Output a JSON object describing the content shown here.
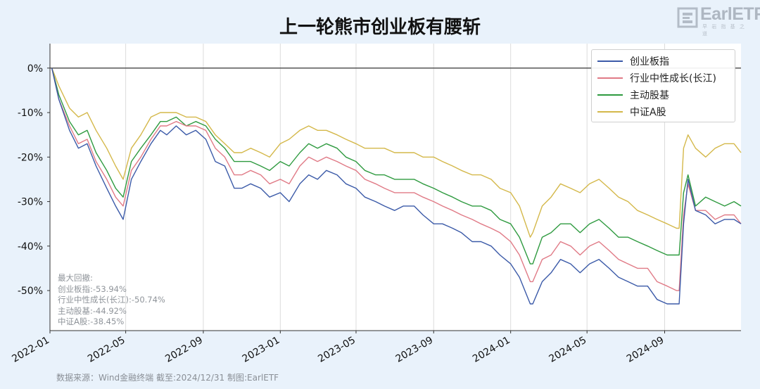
{
  "title": "上一轮熊市创业板有腰斩",
  "logo": {
    "text": "EarlETF",
    "sub": "早 岩 指 基 之 道"
  },
  "source": "数据来源：Wind金融终端 截至:2024/12/31 制图:EarlETF",
  "drawdown": {
    "heading": "最大回撤:",
    "lines": [
      "创业板指:-53.94%",
      "行业中性成长(长江):-50.74%",
      "主动股基:-44.92%",
      "中证A股:-38.45%"
    ]
  },
  "chart_data": {
    "type": "line",
    "title": "上一轮熊市创业板有腰斩",
    "xlabel": "",
    "ylabel": "",
    "x_ticks": [
      "2022-01",
      "2022-05",
      "2022-09",
      "2023-01",
      "2023-05",
      "2023-09",
      "2024-01",
      "2024-05",
      "2024-09"
    ],
    "x_range": [
      "2022-01",
      "2024-12-31"
    ],
    "y_ticks": [
      "0%",
      "-10%",
      "-20%",
      "-30%",
      "-40%",
      "-50%"
    ],
    "ylim": [
      -59,
      5.5
    ],
    "grid": "vertical",
    "legend_position": "top-right",
    "x": [
      "2022-01-04",
      "2022-01-15",
      "2022-02-01",
      "2022-02-15",
      "2022-03-01",
      "2022-03-15",
      "2022-04-01",
      "2022-04-15",
      "2022-04-27",
      "2022-05-10",
      "2022-05-25",
      "2022-06-10",
      "2022-06-25",
      "2022-07-05",
      "2022-07-20",
      "2022-08-05",
      "2022-08-20",
      "2022-09-05",
      "2022-09-20",
      "2022-10-05",
      "2022-10-20",
      "2022-11-01",
      "2022-11-15",
      "2022-12-01",
      "2022-12-15",
      "2023-01-01",
      "2023-01-15",
      "2023-02-01",
      "2023-02-15",
      "2023-03-01",
      "2023-03-15",
      "2023-04-01",
      "2023-04-15",
      "2023-05-01",
      "2023-05-15",
      "2023-06-01",
      "2023-06-15",
      "2023-07-01",
      "2023-07-15",
      "2023-08-01",
      "2023-08-15",
      "2023-09-01",
      "2023-09-15",
      "2023-10-01",
      "2023-10-15",
      "2023-11-01",
      "2023-11-15",
      "2023-12-01",
      "2023-12-15",
      "2024-01-01",
      "2024-01-15",
      "2024-02-01",
      "2024-02-05",
      "2024-02-20",
      "2024-03-05",
      "2024-03-20",
      "2024-04-05",
      "2024-04-20",
      "2024-05-05",
      "2024-05-20",
      "2024-06-05",
      "2024-06-20",
      "2024-07-05",
      "2024-07-20",
      "2024-08-05",
      "2024-08-20",
      "2024-09-05",
      "2024-09-20",
      "2024-09-24",
      "2024-10-01",
      "2024-10-08",
      "2024-10-20",
      "2024-11-05",
      "2024-11-20",
      "2024-12-05",
      "2024-12-20",
      "2024-12-31"
    ],
    "series": [
      {
        "name": "创业板指",
        "color": "#3b5aa8",
        "values": [
          0,
          -7,
          -14,
          -18,
          -17,
          -22,
          -27,
          -31,
          -34,
          -25,
          -21,
          -17,
          -14,
          -15,
          -13,
          -15,
          -14,
          -16,
          -21,
          -22,
          -27,
          -27,
          -26,
          -27,
          -29,
          -28,
          -30,
          -26,
          -24,
          -25,
          -23,
          -24,
          -26,
          -27,
          -29,
          -30,
          -31,
          -32,
          -31,
          -31,
          -33,
          -35,
          -35,
          -36,
          -37,
          -39,
          -39,
          -40,
          -42,
          -44,
          -47,
          -53,
          -53,
          -48,
          -46,
          -43,
          -44,
          -46,
          -44,
          -43,
          -45,
          -47,
          -48,
          -49,
          -49,
          -52,
          -53,
          -53,
          -53,
          -35,
          -25,
          -32,
          -33,
          -35,
          -34,
          -34,
          -35
        ]
      },
      {
        "name": "行业中性成长(长江)",
        "color": "#e07a86",
        "values": [
          0,
          -7,
          -13,
          -17,
          -16,
          -21,
          -25,
          -29,
          -31,
          -23,
          -20,
          -16,
          -13,
          -13,
          -12,
          -13,
          -13,
          -14,
          -18,
          -20,
          -24,
          -24,
          -23,
          -24,
          -26,
          -25,
          -26,
          -22,
          -20,
          -21,
          -20,
          -21,
          -22,
          -23,
          -25,
          -26,
          -27,
          -28,
          -28,
          -28,
          -29,
          -30,
          -31,
          -32,
          -33,
          -34,
          -35,
          -36,
          -37,
          -39,
          -42,
          -48,
          -48,
          -43,
          -42,
          -39,
          -40,
          -42,
          -40,
          -39,
          -41,
          -43,
          -44,
          -45,
          -45,
          -48,
          -49,
          -50,
          -50,
          -33,
          -26,
          -32,
          -32,
          -34,
          -33,
          -33,
          -35
        ]
      },
      {
        "name": "主动股基",
        "color": "#2e9a3f",
        "values": [
          0,
          -6,
          -12,
          -15,
          -14,
          -19,
          -23,
          -27,
          -29,
          -21,
          -18,
          -15,
          -12,
          -12,
          -11,
          -13,
          -12,
          -13,
          -16,
          -18,
          -21,
          -21,
          -21,
          -22,
          -23,
          -21,
          -22,
          -19,
          -17,
          -18,
          -17,
          -18,
          -20,
          -21,
          -23,
          -24,
          -24,
          -25,
          -25,
          -25,
          -26,
          -27,
          -28,
          -29,
          -30,
          -31,
          -31,
          -32,
          -34,
          -35,
          -38,
          -44,
          -44,
          -38,
          -37,
          -35,
          -35,
          -37,
          -35,
          -34,
          -36,
          -38,
          -38,
          -39,
          -40,
          -41,
          -42,
          -42,
          -42,
          -28,
          -24,
          -31,
          -29,
          -30,
          -31,
          -30,
          -31
        ]
      },
      {
        "name": "中证A股",
        "color": "#d4b84a",
        "values": [
          0,
          -4,
          -9,
          -11,
          -10,
          -14,
          -18,
          -22,
          -25,
          -18,
          -15,
          -11,
          -10,
          -10,
          -10,
          -11,
          -11,
          -12,
          -15,
          -17,
          -19,
          -19,
          -18,
          -19,
          -20,
          -17,
          -16,
          -14,
          -13,
          -14,
          -14,
          -15,
          -16,
          -17,
          -18,
          -18,
          -18,
          -19,
          -19,
          -19,
          -20,
          -20,
          -21,
          -22,
          -23,
          -24,
          -24,
          -25,
          -27,
          -28,
          -31,
          -38,
          -37,
          -31,
          -29,
          -26,
          -27,
          -28,
          -26,
          -25,
          -27,
          -29,
          -30,
          -32,
          -33,
          -34,
          -35,
          -36,
          -36,
          -18,
          -15,
          -18,
          -20,
          -18,
          -17,
          -17,
          -19
        ]
      }
    ]
  }
}
